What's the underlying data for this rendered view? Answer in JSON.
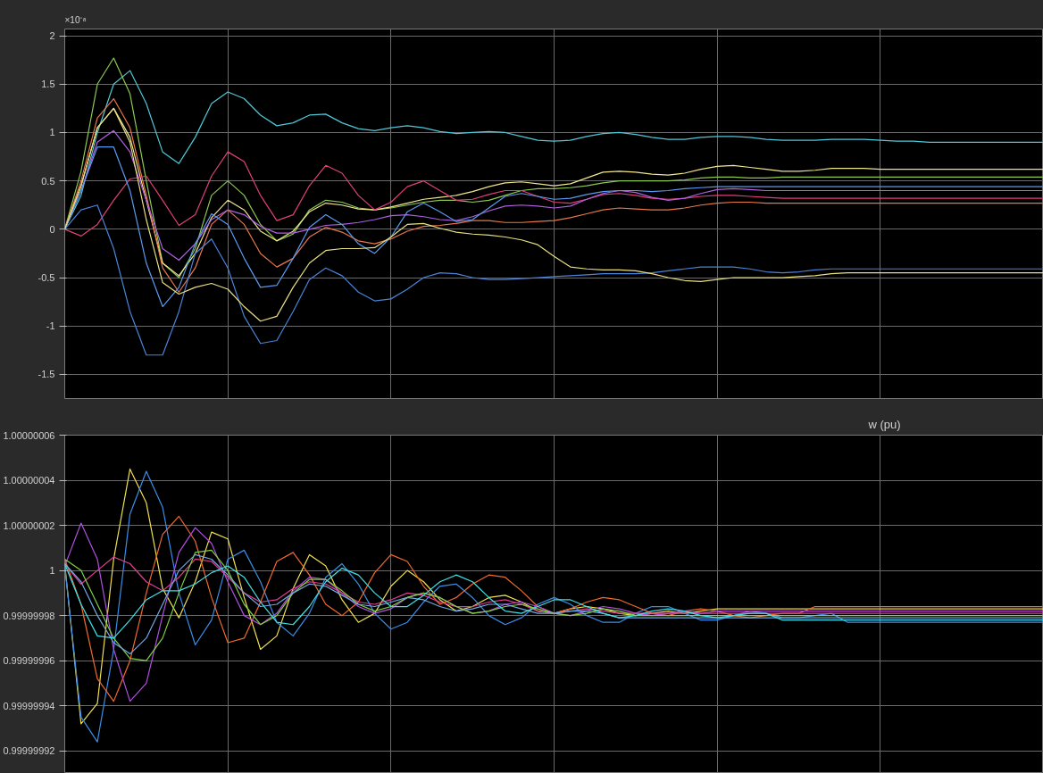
{
  "chart_data": [
    {
      "type": "line",
      "annotations": [
        "×10⁻⁸"
      ],
      "categories": [
        null,
        null,
        null,
        null,
        null,
        null,
        null,
        null,
        null,
        null,
        null,
        null,
        null,
        null,
        null,
        null,
        null,
        null,
        null,
        null,
        null,
        null,
        null,
        null,
        null,
        null,
        null,
        null,
        null,
        null,
        null,
        null,
        null,
        null,
        null,
        null,
        null,
        null,
        null,
        null,
        null,
        null,
        null,
        null,
        null,
        null,
        null,
        null,
        null,
        null,
        null,
        null,
        null,
        null,
        null,
        null,
        null,
        null,
        null,
        null,
        null
      ],
      "ylim": [
        -1.75,
        2.07
      ],
      "yticks": [
        -1.5,
        -1,
        -0.5,
        0,
        0.5,
        1,
        1.5,
        2
      ],
      "grid": true,
      "tick_labels": "y",
      "series": [
        {
          "color": "#4fc8d8",
          "values": [
            0,
            0.35,
            1.0,
            1.5,
            1.64,
            1.3,
            0.8,
            0.68,
            0.95,
            1.3,
            1.42,
            1.35,
            1.18,
            1.07,
            1.1,
            1.18,
            1.19,
            1.1,
            1.04,
            1.02,
            1.05,
            1.07,
            1.05,
            1.01,
            0.99,
            1.0,
            1.01,
            1.0,
            0.96,
            0.92,
            0.91,
            0.92,
            0.96,
            0.99,
            1.0,
            0.98,
            0.95,
            0.93,
            0.93,
            0.95,
            0.96,
            0.96,
            0.95,
            0.93,
            0.92,
            0.92,
            0.92,
            0.93,
            0.93,
            0.93,
            0.92,
            0.91,
            0.91,
            0.9,
            0.9,
            0.9,
            0.9,
            0.9,
            0.9,
            0.9,
            0.9
          ]
        },
        {
          "color": "#8cc850",
          "values": [
            0,
            0.6,
            1.5,
            1.77,
            1.4,
            0.5,
            -0.35,
            -0.5,
            -0.2,
            0.35,
            0.5,
            0.35,
            0.05,
            -0.12,
            -0.05,
            0.2,
            0.3,
            0.28,
            0.22,
            0.2,
            0.22,
            0.25,
            0.28,
            0.3,
            0.3,
            0.28,
            0.3,
            0.35,
            0.4,
            0.42,
            0.42,
            0.43,
            0.45,
            0.48,
            0.5,
            0.5,
            0.5,
            0.5,
            0.51,
            0.53,
            0.54,
            0.54,
            0.53,
            0.53,
            0.54,
            0.54,
            0.54,
            0.54,
            0.54,
            0.54,
            0.54,
            0.54,
            0.54,
            0.54,
            0.54,
            0.54,
            0.54,
            0.54,
            0.54,
            0.54,
            0.54
          ]
        },
        {
          "color": "#f0e68c",
          "values": [
            0,
            0.45,
            1.05,
            1.25,
            0.95,
            0.3,
            -0.35,
            -0.48,
            -0.25,
            0.12,
            0.3,
            0.2,
            -0.02,
            -0.12,
            -0.02,
            0.18,
            0.27,
            0.25,
            0.21,
            0.2,
            0.23,
            0.27,
            0.31,
            0.33,
            0.35,
            0.39,
            0.44,
            0.48,
            0.49,
            0.47,
            0.45,
            0.47,
            0.53,
            0.59,
            0.6,
            0.59,
            0.57,
            0.56,
            0.58,
            0.62,
            0.65,
            0.66,
            0.64,
            0.62,
            0.6,
            0.6,
            0.61,
            0.63,
            0.63,
            0.63,
            0.62,
            0.62,
            0.62,
            0.62,
            0.62,
            0.62,
            0.62,
            0.62,
            0.62,
            0.62,
            0.62
          ]
        },
        {
          "color": "#e8784a",
          "values": [
            0,
            0.5,
            1.15,
            1.35,
            1.05,
            0.35,
            -0.4,
            -0.65,
            -0.4,
            0.05,
            0.2,
            0.05,
            -0.25,
            -0.39,
            -0.3,
            -0.08,
            0.02,
            -0.03,
            -0.12,
            -0.15,
            -0.1,
            -0.02,
            0.03,
            0.04,
            0.06,
            0.09,
            0.09,
            0.07,
            0.07,
            0.08,
            0.09,
            0.12,
            0.16,
            0.2,
            0.22,
            0.21,
            0.2,
            0.2,
            0.22,
            0.25,
            0.27,
            0.28,
            0.28,
            0.27,
            0.27,
            0.27,
            0.27,
            0.27,
            0.27,
            0.27,
            0.27,
            0.27,
            0.27,
            0.27,
            0.27,
            0.27,
            0.27,
            0.27,
            0.27,
            0.27,
            0.27
          ]
        },
        {
          "color": "#e0407a",
          "values": [
            0,
            -0.07,
            0.05,
            0.3,
            0.52,
            0.55,
            0.3,
            0.04,
            0.15,
            0.55,
            0.8,
            0.7,
            0.35,
            0.09,
            0.15,
            0.45,
            0.66,
            0.58,
            0.35,
            0.2,
            0.28,
            0.44,
            0.5,
            0.4,
            0.3,
            0.31,
            0.36,
            0.4,
            0.4,
            0.34,
            0.28,
            0.27,
            0.31,
            0.36,
            0.37,
            0.35,
            0.32,
            0.31,
            0.32,
            0.34,
            0.35,
            0.35,
            0.34,
            0.33,
            0.32,
            0.32,
            0.32,
            0.32,
            0.32,
            0.32,
            0.32,
            0.32,
            0.32,
            0.32,
            0.32,
            0.32,
            0.32,
            0.32,
            0.32,
            0.32,
            0.32
          ]
        },
        {
          "color": "#b060e0",
          "values": [
            0,
            0.4,
            0.9,
            1.02,
            0.8,
            0.3,
            -0.2,
            -0.32,
            -0.15,
            0.1,
            0.2,
            0.15,
            0.03,
            -0.04,
            -0.04,
            0.0,
            0.04,
            0.05,
            0.07,
            0.1,
            0.14,
            0.15,
            0.13,
            0.1,
            0.09,
            0.13,
            0.19,
            0.24,
            0.25,
            0.24,
            0.22,
            0.24,
            0.31,
            0.37,
            0.4,
            0.38,
            0.33,
            0.3,
            0.32,
            0.37,
            0.41,
            0.42,
            0.41,
            0.4,
            0.4,
            0.4,
            0.4,
            0.4,
            0.4,
            0.4,
            0.4,
            0.4,
            0.4,
            0.4,
            0.4,
            0.4,
            0.4,
            0.4,
            0.4,
            0.4,
            0.4
          ]
        },
        {
          "color": "#5a9af0",
          "values": [
            0,
            0.4,
            0.85,
            0.85,
            0.4,
            -0.35,
            -0.8,
            -0.6,
            -0.15,
            0.16,
            0.05,
            -0.3,
            -0.6,
            -0.58,
            -0.3,
            0.02,
            0.15,
            0.05,
            -0.15,
            -0.25,
            -0.08,
            0.18,
            0.27,
            0.18,
            0.08,
            0.1,
            0.22,
            0.34,
            0.37,
            0.34,
            0.31,
            0.32,
            0.36,
            0.39,
            0.4,
            0.4,
            0.39,
            0.4,
            0.42,
            0.43,
            0.44,
            0.44,
            0.44,
            0.44,
            0.44,
            0.44,
            0.44,
            0.44,
            0.44,
            0.44,
            0.44,
            0.44,
            0.44,
            0.44,
            0.44,
            0.44,
            0.44,
            0.44,
            0.44,
            0.44,
            0.44
          ]
        },
        {
          "color": "#4a84d8",
          "values": [
            0,
            0.2,
            0.25,
            -0.2,
            -0.85,
            -1.3,
            -1.3,
            -0.85,
            -0.25,
            -0.1,
            -0.4,
            -0.9,
            -1.18,
            -1.15,
            -0.85,
            -0.52,
            -0.4,
            -0.48,
            -0.65,
            -0.74,
            -0.72,
            -0.62,
            -0.5,
            -0.45,
            -0.46,
            -0.5,
            -0.52,
            -0.52,
            -0.51,
            -0.5,
            -0.49,
            -0.48,
            -0.47,
            -0.46,
            -0.46,
            -0.46,
            -0.45,
            -0.43,
            -0.41,
            -0.39,
            -0.39,
            -0.39,
            -0.41,
            -0.44,
            -0.45,
            -0.44,
            -0.42,
            -0.41,
            -0.41,
            -0.41,
            -0.41,
            -0.41,
            -0.41,
            -0.41,
            -0.41,
            -0.41,
            -0.41,
            -0.41,
            -0.41,
            -0.41,
            -0.41
          ]
        },
        {
          "color": "#e8e080",
          "values": [
            0,
            0.45,
            1.05,
            1.25,
            0.9,
            0.1,
            -0.55,
            -0.67,
            -0.6,
            -0.56,
            -0.62,
            -0.8,
            -0.95,
            -0.9,
            -0.6,
            -0.35,
            -0.22,
            -0.2,
            -0.2,
            -0.19,
            -0.08,
            0.05,
            0.06,
            0.01,
            -0.03,
            -0.05,
            -0.06,
            -0.08,
            -0.11,
            -0.16,
            -0.28,
            -0.39,
            -0.41,
            -0.42,
            -0.42,
            -0.43,
            -0.46,
            -0.5,
            -0.53,
            -0.54,
            -0.52,
            -0.5,
            -0.5,
            -0.5,
            -0.5,
            -0.49,
            -0.48,
            -0.46,
            -0.45,
            -0.45,
            -0.45,
            -0.45,
            -0.45,
            -0.45,
            -0.45,
            -0.45,
            -0.45,
            -0.45,
            -0.45,
            -0.45,
            -0.45
          ]
        }
      ]
    },
    {
      "type": "line",
      "title": "w (pu)",
      "categories": [
        null,
        null,
        null,
        null,
        null,
        null,
        null,
        null,
        null,
        null,
        null,
        null,
        null,
        null,
        null,
        null,
        null,
        null,
        null,
        null,
        null,
        null,
        null,
        null,
        null,
        null,
        null,
        null,
        null,
        null,
        null,
        null,
        null,
        null,
        null,
        null,
        null,
        null,
        null,
        null,
        null,
        null,
        null,
        null,
        null,
        null,
        null,
        null,
        null,
        null,
        null,
        null,
        null,
        null,
        null,
        null,
        null,
        null,
        null,
        null,
        null
      ],
      "ylim": [
        0.99999991,
        1.00000006
      ],
      "yticks": [
        0.99999992,
        0.99999994,
        0.99999996,
        0.99999998,
        1,
        1.00000002,
        1.00000004,
        1.00000006
      ],
      "grid": true,
      "tick_labels": "y",
      "series": [
        {
          "color": "#f0e050",
          "values": [
            1.000000003,
            0.999999932,
            0.999999941,
            1.000000005,
            1.000000045,
            1.00000003,
            0.999999992,
            0.999999979,
            0.999999995,
            1.000000017,
            1.000000014,
            0.999999988,
            0.999999965,
            0.999999971,
            0.999999992,
            1.000000007,
            1.000000002,
            0.999999987,
            0.999999977,
            0.999999981,
            0.999999993,
            1,
            0.999999995,
            0.999999987,
            0.999999982,
            0.999999984,
            0.999999988,
            0.999999989,
            0.999999986,
            0.999999982,
            0.999999981,
            0.999999983,
            0.999999984,
            0.999999983,
            0.999999981,
            0.99999998,
            0.999999981,
            0.999999982,
            0.999999981,
            0.999999982,
            0.999999983,
            0.999999983,
            0.999999983,
            0.999999983,
            0.999999983,
            0.999999983,
            0.999999983,
            0.999999983,
            0.999999983,
            0.999999983,
            0.999999983,
            0.999999983,
            0.999999983,
            0.999999983,
            0.999999983,
            0.999999983,
            0.999999983,
            0.999999983,
            0.999999983,
            0.999999983,
            0.999999983
          ]
        },
        {
          "color": "#3a8ee8",
          "values": [
            1.000000002,
            0.999999935,
            0.999999924,
            0.999999965,
            1.000000025,
            1.000000044,
            1.000000028,
            0.99999999,
            0.999999967,
            0.999999978,
            1.000000005,
            1.000000009,
            0.999999995,
            0.999999977,
            0.999999971,
            0.999999981,
            0.999999997,
            1.000000003,
            0.999999994,
            0.999999981,
            0.999999974,
            0.999999977,
            0.999999986,
            0.999999993,
            0.999999994,
            0.999999988,
            0.99999998,
            0.999999976,
            0.999999979,
            0.999999985,
            0.999999988,
            0.999999985,
            0.99999998,
            0.999999977,
            0.999999977,
            0.999999981,
            0.999999984,
            0.999999984,
            0.999999981,
            0.999999978,
            0.999999978,
            0.99999998,
            0.999999982,
            0.999999981,
            0.999999979,
            0.999999979,
            0.99999998,
            0.999999981,
            0.999999977,
            0.999999977,
            0.999999977,
            0.999999977,
            0.999999977,
            0.999999977,
            0.999999977,
            0.999999977,
            0.999999977,
            0.999999977,
            0.999999977,
            0.999999977,
            0.999999977
          ]
        },
        {
          "color": "#f06a30",
          "values": [
            1.000000005,
            0.999999985,
            0.999999952,
            0.999999942,
            0.99999996,
            0.99999999,
            1.000000016,
            1.000000024,
            1.000000013,
            0.999999988,
            0.999999968,
            0.99999997,
            0.999999986,
            1.000000004,
            1.000000008,
            0.999999998,
            0.999999985,
            0.99999998,
            0.999999986,
            0.999999999,
            1.000000007,
            1.000000004,
            0.999999993,
            0.999999985,
            0.999999988,
            0.999999994,
            0.999999998,
            0.999999997,
            0.999999991,
            0.999999984,
            0.999999981,
            0.999999983,
            0.999999986,
            0.999999988,
            0.999999987,
            0.999999984,
            0.999999981,
            0.99999998,
            0.999999982,
            0.999999983,
            0.999999982,
            0.99999998,
            0.999999979,
            0.99999998,
            0.999999981,
            0.999999981,
            0.999999984,
            0.999999984,
            0.999999984,
            0.999999984,
            0.999999984,
            0.999999984,
            0.999999984,
            0.999999984,
            0.999999984,
            0.999999984,
            0.999999984,
            0.999999984,
            0.999999984,
            0.999999984,
            0.999999984
          ]
        },
        {
          "color": "#b050e0",
          "values": [
            1.000000002,
            1.000000021,
            1.000000005,
            0.999999965,
            0.999999942,
            0.99999995,
            0.99999998,
            1.000000008,
            1.000000019,
            1.000000012,
            0.999999995,
            0.99999998,
            0.999999976,
            0.999999981,
            0.999999991,
            0.999999997,
            0.999999996,
            0.99999999,
            0.999999984,
            0.999999981,
            0.999999983,
            0.999999988,
            0.99999999,
            0.999999988,
            0.999999984,
            0.999999981,
            0.999999982,
            0.999999985,
            0.999999986,
            0.999999984,
            0.999999981,
            0.99999998,
            0.999999982,
            0.999999984,
            0.999999983,
            0.999999981,
            0.99999998,
            0.999999981,
            0.999999982,
            0.999999981,
            0.999999982,
            0.999999982,
            0.999999982,
            0.999999982,
            0.999999982,
            0.999999982,
            0.999999982,
            0.999999982,
            0.999999982,
            0.999999982,
            0.999999982,
            0.999999982,
            0.999999982,
            0.999999982,
            0.999999982,
            0.999999982,
            0.999999982,
            0.999999982,
            0.999999982,
            0.999999982,
            0.999999982
          ]
        },
        {
          "color": "#e04090",
          "values": [
            1.000000003,
            0.999999994,
            1,
            1.000000006,
            1.000000003,
            0.999999995,
            0.999999991,
            0.999999997,
            1.000000005,
            1.000000004,
            0.999999997,
            0.99999999,
            0.999999986,
            0.999999987,
            0.999999992,
            0.999999995,
            0.999999994,
            0.99999999,
            0.999999986,
            0.999999985,
            0.999999987,
            0.99999999,
            0.999999989,
            0.999999986,
            0.999999984,
            0.999999984,
            0.999999986,
            0.999999987,
            0.999999985,
            0.999999982,
            0.999999981,
            0.999999982,
            0.999999983,
            0.999999982,
            0.999999981,
            0.999999981,
            0.999999981,
            0.999999981,
            0.999999981,
            0.999999981,
            0.999999981,
            0.999999981,
            0.999999981,
            0.999999981,
            0.999999981,
            0.999999981,
            0.999999981,
            0.999999981,
            0.999999981,
            0.999999981,
            0.999999981,
            0.999999981,
            0.999999981,
            0.999999981,
            0.999999981,
            0.999999981,
            0.999999981,
            0.999999981,
            0.999999981,
            0.999999981,
            0.999999981
          ]
        },
        {
          "color": "#80d040",
          "values": [
            1.000000005,
            1,
            0.999999985,
            0.99999997,
            0.999999961,
            0.99999996,
            0.99999997,
            0.99999999,
            1.000000008,
            1.000000009,
            1,
            0.999999985,
            0.999999976,
            0.99999998,
            0.99999999,
            0.999999996,
            0.999999996,
            0.999999991,
            0.999999985,
            0.999999982,
            0.999999984,
            0.999999988,
            0.99999999,
            0.999999988,
            0.999999984,
            0.999999981,
            0.999999982,
            0.999999984,
            0.999999985,
            0.999999983,
            0.999999981,
            0.99999998,
            0.999999981,
            0.999999983,
            0.999999982,
            0.99999998,
            0.99999998,
            0.99999998,
            0.99999998,
            0.99999998,
            0.99999998,
            0.99999998,
            0.99999998,
            0.99999998,
            0.99999998,
            0.99999998,
            0.99999998,
            0.99999998,
            0.99999998,
            0.99999998,
            0.99999998,
            0.99999998,
            0.99999998,
            0.99999998,
            0.99999998,
            0.99999998,
            0.99999998,
            0.99999998,
            0.99999998,
            0.99999998,
            0.99999998
          ]
        },
        {
          "color": "#70a8e0",
          "values": [
            1.000000003,
            0.999999995,
            0.99999998,
            0.999999968,
            0.999999963,
            0.99999997,
            0.999999985,
            1,
            1.000000007,
            1.000000005,
            0.999999998,
            0.99999999,
            0.999999984,
            0.999999985,
            0.99999999,
            0.999999994,
            0.999999993,
            0.999999989,
            0.999999985,
            0.999999984,
            0.999999986,
            0.999999988,
            0.999999987,
            0.999999984,
            0.999999982,
            0.999999983,
            0.999999985,
            0.999999985,
            0.999999983,
            0.999999981,
            0.999999981,
            0.999999982,
            0.999999982,
            0.999999981,
            0.999999979,
            0.999999979,
            0.999999979,
            0.999999979,
            0.999999979,
            0.999999979,
            0.999999979,
            0.999999979,
            0.999999979,
            0.999999979,
            0.999999979,
            0.999999979,
            0.999999979,
            0.999999979,
            0.999999979,
            0.999999979,
            0.999999979,
            0.999999979,
            0.999999979,
            0.999999979,
            0.999999979,
            0.999999979,
            0.999999979,
            0.999999979,
            0.999999979,
            0.999999979,
            0.999999979
          ]
        },
        {
          "color": "#40e0e8",
          "values": [
            1.000000003,
            0.999999985,
            0.999999971,
            0.99999997,
            0.999999978,
            0.999999987,
            0.999999991,
            0.999999991,
            0.999999994,
            0.999999999,
            1.000000002,
            0.999999997,
            0.999999986,
            0.999999977,
            0.999999976,
            0.999999984,
            0.999999995,
            1.000000001,
            0.999999998,
            0.99999999,
            0.999999984,
            0.999999984,
            0.999999989,
            0.999999995,
            0.999999998,
            0.999999995,
            0.999999988,
            0.999999982,
            0.999999981,
            0.999999984,
            0.999999987,
            0.999999987,
            0.999999984,
            0.999999981,
            0.999999979,
            0.99999998,
            0.999999982,
            0.999999983,
            0.999999982,
            0.99999998,
            0.999999979,
            0.99999998,
            0.999999981,
            0.999999981,
            0.999999978,
            0.999999978,
            0.999999978,
            0.999999978,
            0.999999978,
            0.999999978,
            0.999999978,
            0.999999978,
            0.999999978,
            0.999999978,
            0.999999978,
            0.999999978,
            0.999999978,
            0.999999978,
            0.999999978,
            0.999999978,
            0.999999978
          ]
        }
      ]
    }
  ]
}
